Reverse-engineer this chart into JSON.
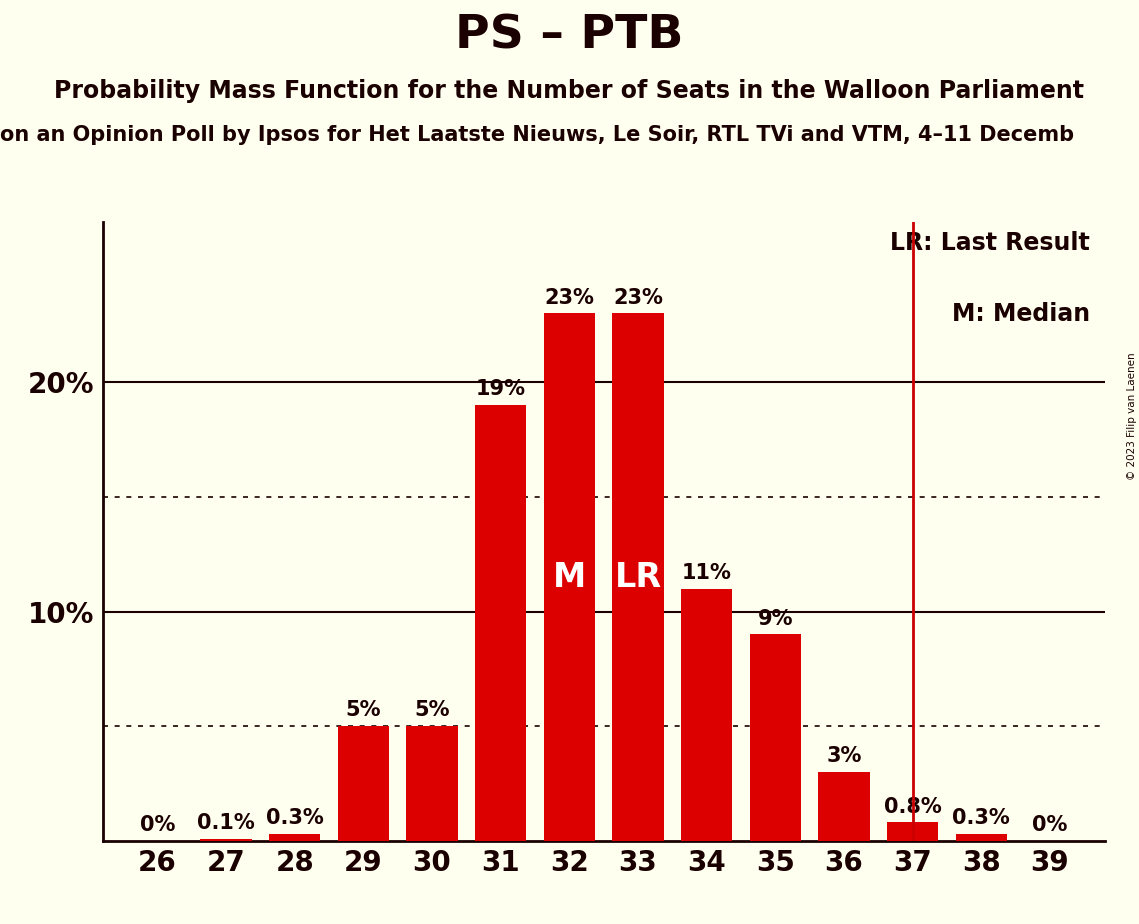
{
  "title": "PS – PTB",
  "subtitle": "Probability Mass Function for the Number of Seats in the Walloon Parliament",
  "source_line": "on an Opinion Poll by Ipsos for Het Laatste Nieuws, Le Soir, RTL TVi and VTM, 4–11 Decemb",
  "copyright": "© 2023 Filip van Laenen",
  "seats": [
    26,
    27,
    28,
    29,
    30,
    31,
    32,
    33,
    34,
    35,
    36,
    37,
    38,
    39
  ],
  "probabilities": [
    0.0,
    0.1,
    0.3,
    5.0,
    5.0,
    19.0,
    23.0,
    23.0,
    11.0,
    9.0,
    3.0,
    0.8,
    0.3,
    0.0
  ],
  "prob_labels": [
    "0%",
    "0.1%",
    "0.3%",
    "5%",
    "5%",
    "19%",
    "23%",
    "23%",
    "11%",
    "9%",
    "3%",
    "0.8%",
    "0.3%",
    "0%"
  ],
  "median_seat": 32,
  "last_result_seat": 33,
  "lr_line_seat": 37,
  "bar_color_main": "#dd0000",
  "background_color": "#fffff0",
  "axis_color": "#1a0000",
  "vline_color": "#cc0000",
  "yticks": [
    10,
    20
  ],
  "ytick_labels": [
    "10%",
    "20%"
  ],
  "dotted_lines": [
    5,
    15
  ],
  "ylim": [
    0,
    27
  ],
  "title_fontsize": 34,
  "subtitle_fontsize": 17,
  "source_fontsize": 15,
  "label_fontsize": 15,
  "tick_fontsize": 20,
  "legend_fontsize": 17,
  "median_label_color": "#ffffff",
  "lr_label_color": "#ffffff",
  "bar_width": 0.75
}
